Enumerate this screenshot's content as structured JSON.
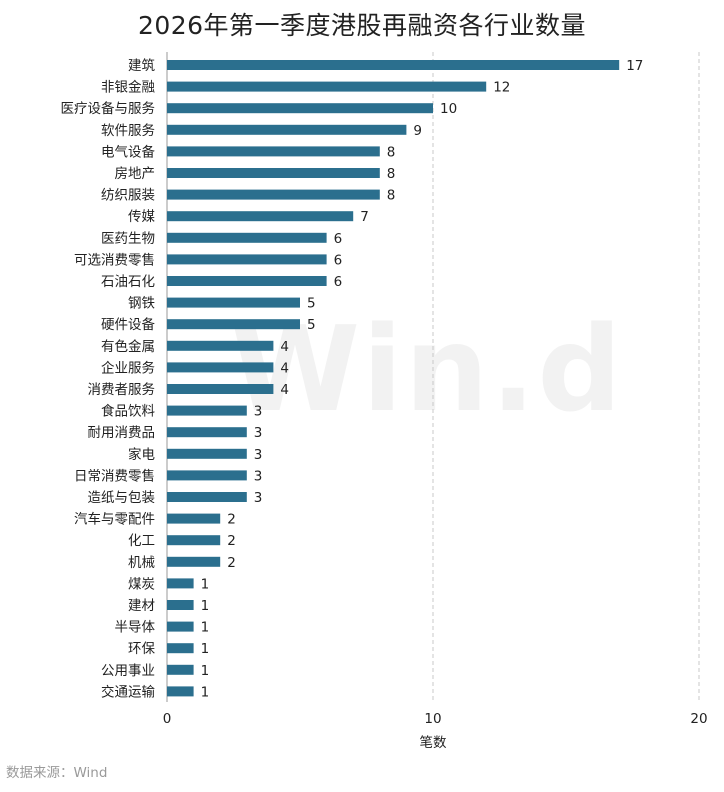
{
  "title": "2026年第一季度港股再融资各行业数量",
  "source": "数据来源：Wind",
  "watermark": "Win.d",
  "colors": {
    "bar": "#2b6f8e",
    "gridline": "#c8c8c8",
    "axis": "#999999"
  },
  "chart_data": {
    "type": "bar",
    "orientation": "horizontal",
    "title": "2026年第一季度港股再融资各行业数量",
    "xlabel": "笔数",
    "ylabel": "",
    "xlim": [
      0,
      20
    ],
    "xticks": [
      0,
      10,
      20
    ],
    "grid": "x-dashed",
    "categories": [
      "建筑",
      "非银金融",
      "医疗设备与服务",
      "软件服务",
      "电气设备",
      "房地产",
      "纺织服装",
      "传媒",
      "医药生物",
      "可选消费零售",
      "石油石化",
      "钢铁",
      "硬件设备",
      "有色金属",
      "企业服务",
      "消费者服务",
      "食品饮料",
      "耐用消费品",
      "家电",
      "日常消费零售",
      "造纸与包装",
      "汽车与零配件",
      "化工",
      "机械",
      "煤炭",
      "建材",
      "半导体",
      "环保",
      "公用事业",
      "交通运输"
    ],
    "values": [
      17,
      12,
      10,
      9,
      8,
      8,
      8,
      7,
      6,
      6,
      6,
      5,
      5,
      4,
      4,
      4,
      3,
      3,
      3,
      3,
      3,
      2,
      2,
      2,
      1,
      1,
      1,
      1,
      1,
      1
    ]
  }
}
